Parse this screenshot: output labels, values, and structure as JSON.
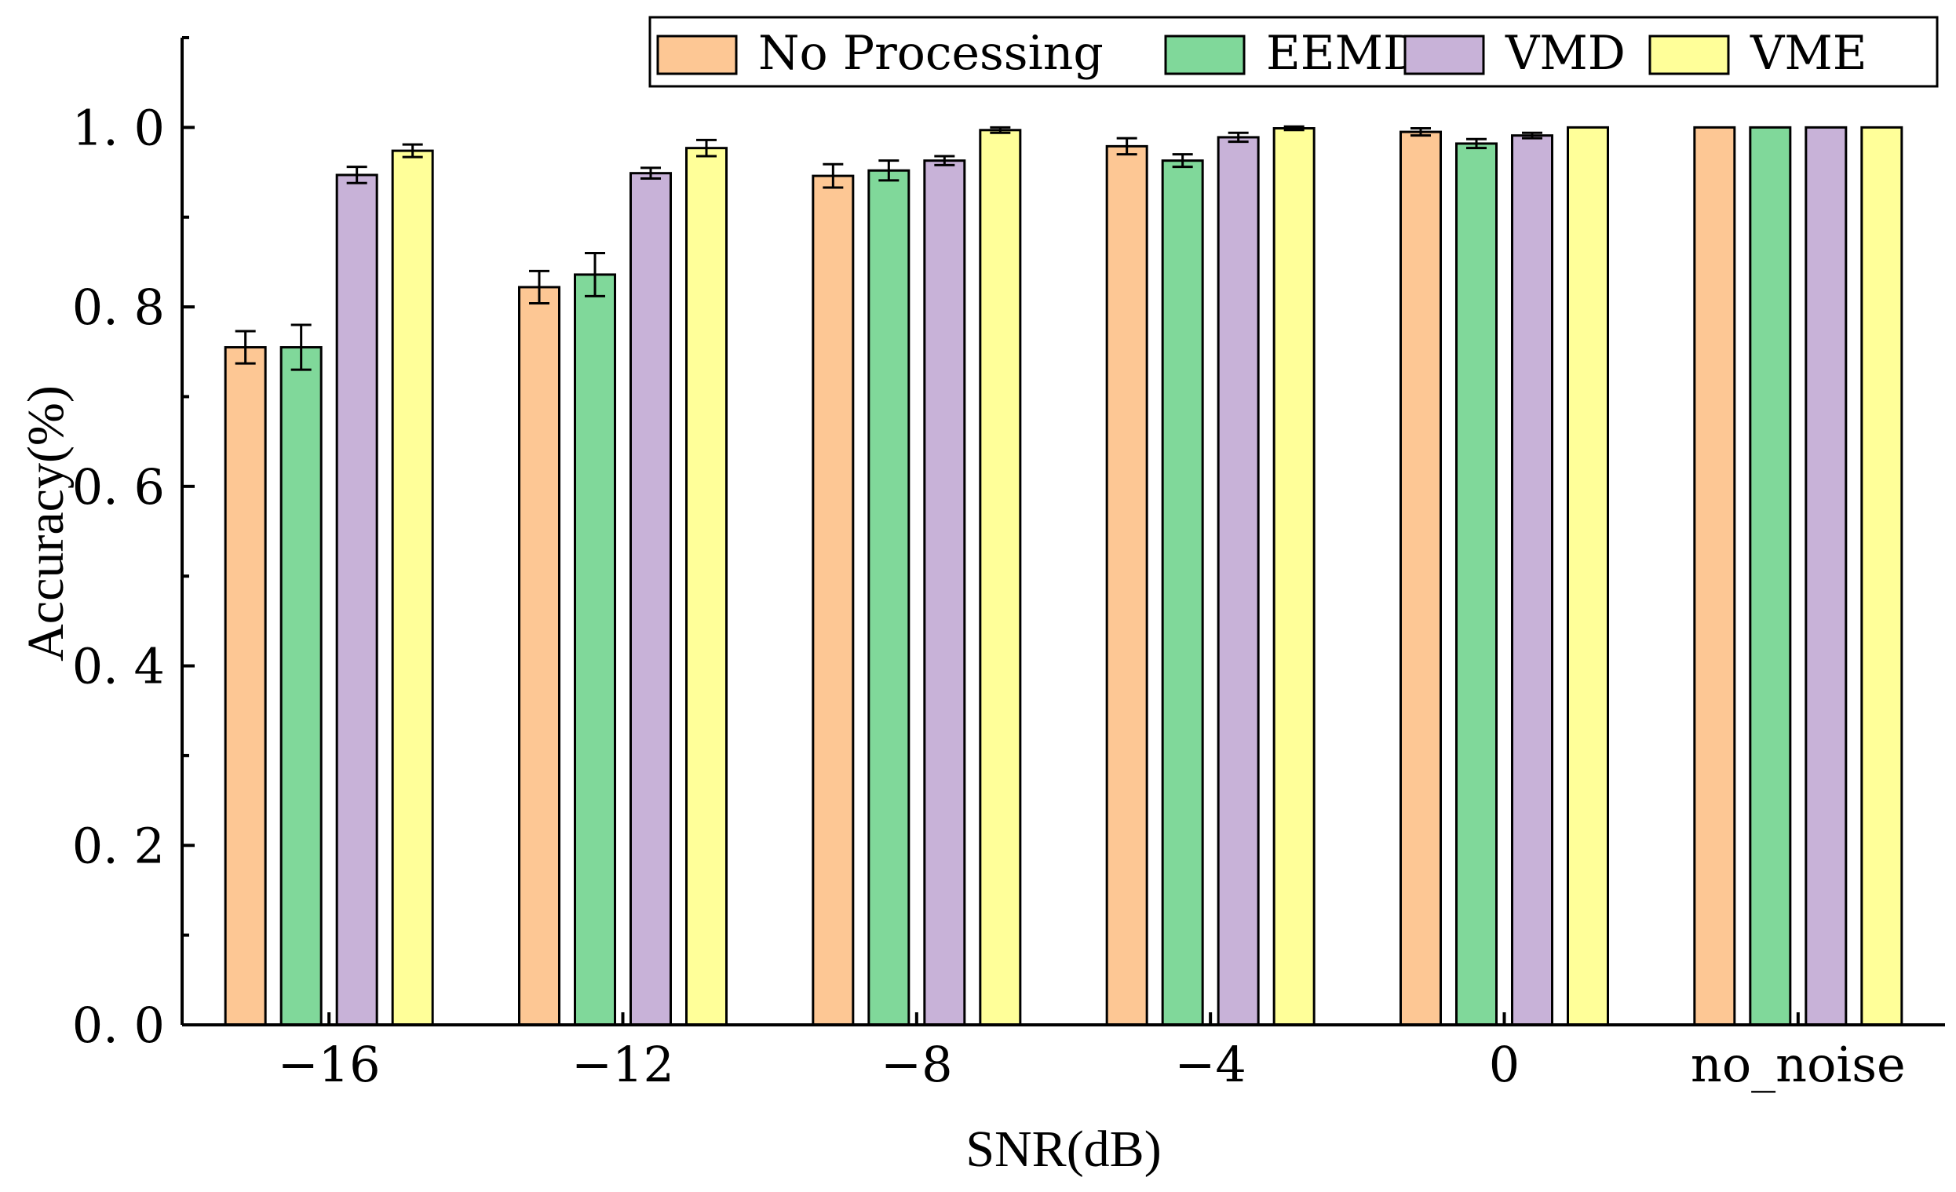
{
  "chart_data": {
    "type": "bar",
    "title": "",
    "xlabel": "SNR(dB)",
    "ylabel": "Accuracy(%)",
    "ylim": [
      0,
      1.1
    ],
    "yticks": [
      0.0,
      0.2,
      0.4,
      0.6,
      0.8,
      1.0
    ],
    "ytick_labels": [
      "0. 0",
      "0. 2",
      "0. 4",
      "0. 6",
      "0. 8",
      "1. 0"
    ],
    "categories": [
      "−16",
      "−12",
      "−8",
      "−4",
      "0",
      "no_noise"
    ],
    "legend_position": "top-right",
    "grid": false,
    "series": [
      {
        "name": "No Processing",
        "color": "#FDC794",
        "values": [
          0.755,
          0.822,
          0.946,
          0.979,
          0.995,
          1.0
        ],
        "errors": [
          0.018,
          0.018,
          0.013,
          0.009,
          0.004,
          0.0
        ]
      },
      {
        "name": "EEMD",
        "color": "#80D89A",
        "values": [
          0.755,
          0.836,
          0.952,
          0.963,
          0.982,
          1.0
        ],
        "errors": [
          0.025,
          0.024,
          0.011,
          0.007,
          0.005,
          0.0
        ]
      },
      {
        "name": "VMD",
        "color": "#C8B2D8",
        "values": [
          0.947,
          0.949,
          0.963,
          0.989,
          0.991,
          1.0
        ],
        "errors": [
          0.009,
          0.006,
          0.005,
          0.005,
          0.003,
          0.0
        ]
      },
      {
        "name": "VME",
        "color": "#FFFF99",
        "values": [
          0.974,
          0.977,
          0.997,
          0.999,
          1.0,
          1.0
        ],
        "errors": [
          0.007,
          0.009,
          0.003,
          0.002,
          0.0,
          0.0
        ]
      }
    ]
  }
}
